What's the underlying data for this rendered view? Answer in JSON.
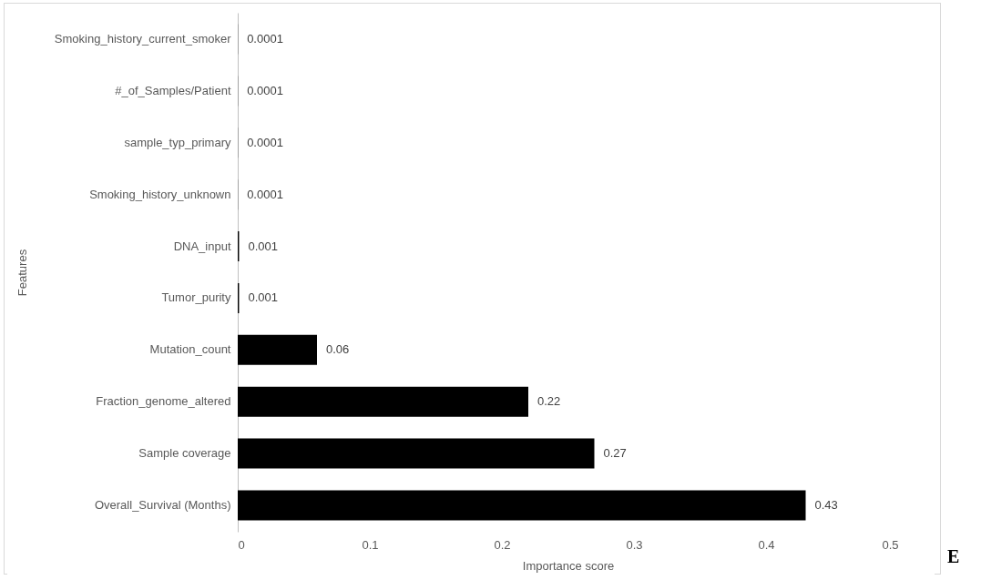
{
  "chart_data": {
    "type": "bar",
    "orientation": "horizontal",
    "xlabel": "Importance score",
    "ylabel": "Features",
    "categories": [
      "Smoking_history_current_smoker",
      "#_of_Samples/Patient",
      "sample_typ_primary",
      "Smoking_history_unknown",
      "DNA_input",
      "Tumor_purity",
      "Mutation_count",
      "Fraction_genome_altered",
      "Sample coverage",
      "Overall_Survival (Months)"
    ],
    "values": [
      0.0001,
      0.0001,
      0.0001,
      0.0001,
      0.001,
      0.001,
      0.06,
      0.22,
      0.27,
      0.43
    ],
    "color": "#000000",
    "xlim": [
      0,
      0.5
    ],
    "xticks": [
      0,
      0.1,
      0.2,
      0.3,
      0.4,
      0.5
    ],
    "data_labels": true,
    "grid": false,
    "annotations": [
      "E"
    ]
  }
}
